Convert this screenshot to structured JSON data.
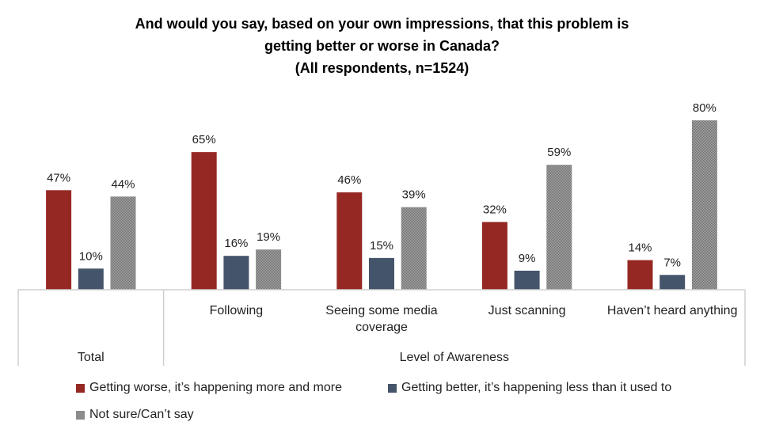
{
  "chart_data": {
    "type": "bar",
    "title": [
      "And would you say, based on your own impressions, that this problem is",
      "getting better or worse in Canada?",
      "(All respondents, n=1524)"
    ],
    "categories": [
      "",
      "Following",
      "Seeing some media coverage",
      "Just scanning",
      "Haven’t heard anything"
    ],
    "category_lines": [
      [
        ""
      ],
      [
        "Following"
      ],
      [
        "Seeing some media",
        "coverage"
      ],
      [
        "Just scanning"
      ],
      [
        "Haven’t heard anything"
      ]
    ],
    "group_labels": [
      {
        "label": "Total",
        "span": [
          0,
          0
        ]
      },
      {
        "label": "Level of Awareness",
        "span": [
          1,
          4
        ]
      }
    ],
    "series": [
      {
        "name": "Getting worse, it’s happening more and more",
        "color": "#962824",
        "values": [
          47,
          65,
          46,
          32,
          14
        ]
      },
      {
        "name": "Getting better, it’s happening less than it used to",
        "color": "#44546a",
        "values": [
          10,
          16,
          15,
          9,
          7
        ]
      },
      {
        "name": "Not sure/Can’t say",
        "color": "#8c8c8c",
        "values": [
          44,
          19,
          39,
          59,
          80
        ]
      }
    ],
    "value_suffix": "%",
    "ylim": [
      0,
      100
    ],
    "grid": false,
    "legend_position": "bottom"
  }
}
